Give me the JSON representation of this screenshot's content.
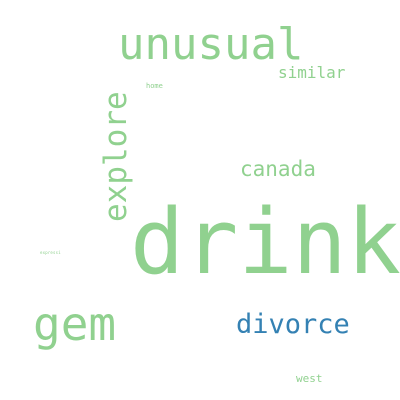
{
  "word_cloud": {
    "words": {
      "drink": "drink",
      "unusual": "unusual",
      "explore": "explore",
      "gem": "gem",
      "divorce": "divorce",
      "canada": "canada",
      "similar": "similar",
      "home": "home",
      "west": "west",
      "tiny": "expressi"
    },
    "colors": {
      "primary_green": "#90d18f",
      "accent_blue": "#3481b3",
      "background": "#ffffff"
    }
  }
}
